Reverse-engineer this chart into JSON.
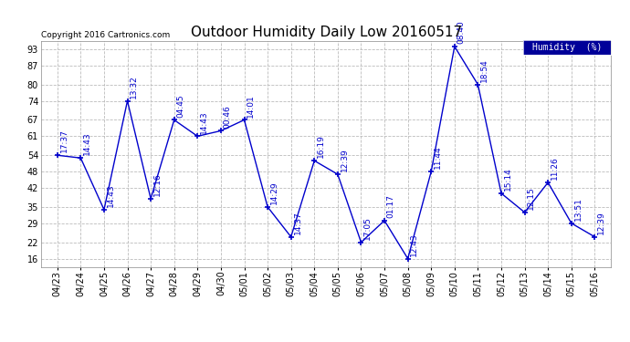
{
  "title": "Outdoor Humidity Daily Low 20160517",
  "copyright": "Copyright 2016 Cartronics.com",
  "legend_label": "Humidity  (%)",
  "x_labels": [
    "04/23",
    "04/24",
    "04/25",
    "04/26",
    "04/27",
    "04/28",
    "04/29",
    "04/30",
    "05/01",
    "05/02",
    "05/03",
    "05/04",
    "05/05",
    "05/06",
    "05/07",
    "05/08",
    "05/09",
    "05/10",
    "05/11",
    "05/12",
    "05/13",
    "05/14",
    "05/15",
    "05/16"
  ],
  "y_values": [
    54,
    53,
    34,
    74,
    38,
    67,
    61,
    63,
    67,
    35,
    24,
    52,
    47,
    22,
    30,
    16,
    48,
    94,
    80,
    40,
    33,
    44,
    29,
    24
  ],
  "time_labels": [
    "17:37",
    "14:43",
    "14:43",
    "13:32",
    "12:16",
    "04:45",
    "14:43",
    "00:46",
    "14:01",
    "14:29",
    "14:37",
    "16:19",
    "12:39",
    "17:05",
    "01:17",
    "12:43",
    "11:44",
    "08:40",
    "18:54",
    "15:14",
    "12:15",
    "11:26",
    "13:51",
    "12:39"
  ],
  "line_color": "#0000cc",
  "marker_color": "#0000cc",
  "bg_color": "#ffffff",
  "grid_color": "#bbbbbb",
  "title_fontsize": 11,
  "annot_fontsize": 6.5,
  "tick_fontsize": 7,
  "ylim": [
    13,
    96
  ],
  "yticks": [
    16,
    22,
    29,
    35,
    42,
    48,
    54,
    61,
    67,
    74,
    80,
    87,
    93
  ],
  "legend_bg": "#000099",
  "legend_text_color": "#ffffff",
  "copyright_color": "#000000"
}
